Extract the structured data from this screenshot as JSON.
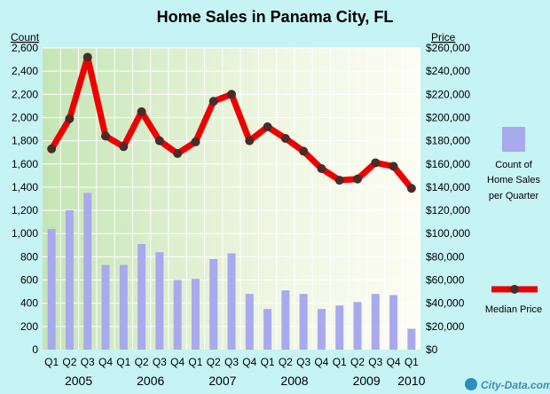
{
  "chart_data": {
    "type": "bar+line",
    "title": "Home Sales in Panama City, FL",
    "ylabel_left": "Count",
    "ylabel_right": "Price",
    "left_axis": {
      "min": 0,
      "max": 2600,
      "step": 200
    },
    "right_axis": {
      "min": 0,
      "max": 260000,
      "step": 20000
    },
    "grid": true,
    "quarters": [
      "Q1",
      "Q2",
      "Q3",
      "Q4",
      "Q1",
      "Q2",
      "Q3",
      "Q4",
      "Q1",
      "Q2",
      "Q3",
      "Q4",
      "Q1",
      "Q2",
      "Q3",
      "Q4",
      "Q1",
      "Q2",
      "Q3",
      "Q4",
      "Q1"
    ],
    "years": [
      {
        "label": "2005",
        "first_index": 0,
        "last_index": 3
      },
      {
        "label": "2006",
        "first_index": 4,
        "last_index": 7
      },
      {
        "label": "2007",
        "first_index": 8,
        "last_index": 11
      },
      {
        "label": "2008",
        "first_index": 12,
        "last_index": 15
      },
      {
        "label": "2009",
        "first_index": 16,
        "last_index": 19
      },
      {
        "label": "2010",
        "first_index": 20,
        "last_index": 20
      }
    ],
    "series": [
      {
        "name": "Count of Home Sales per Quarter",
        "kind": "bar",
        "axis": "left",
        "color": "#a9a9ee",
        "values": [
          1040,
          1200,
          1350,
          730,
          730,
          910,
          840,
          600,
          610,
          780,
          830,
          480,
          350,
          510,
          480,
          350,
          380,
          410,
          480,
          470,
          180
        ]
      },
      {
        "name": "Median Price",
        "kind": "line",
        "axis": "right",
        "color": "#ee0000",
        "marker_color": "#4a2a2a",
        "values": [
          173000,
          199000,
          252000,
          184000,
          175000,
          205000,
          180000,
          169000,
          179000,
          214000,
          220000,
          180000,
          192000,
          182000,
          171000,
          156000,
          146000,
          147000,
          161000,
          158000,
          139000
        ]
      }
    ]
  },
  "legend": {
    "bar_label_lines": [
      "Count of",
      "Home Sales",
      "per Quarter"
    ],
    "line_label": "Median Price"
  },
  "watermark": "City-Data.com"
}
